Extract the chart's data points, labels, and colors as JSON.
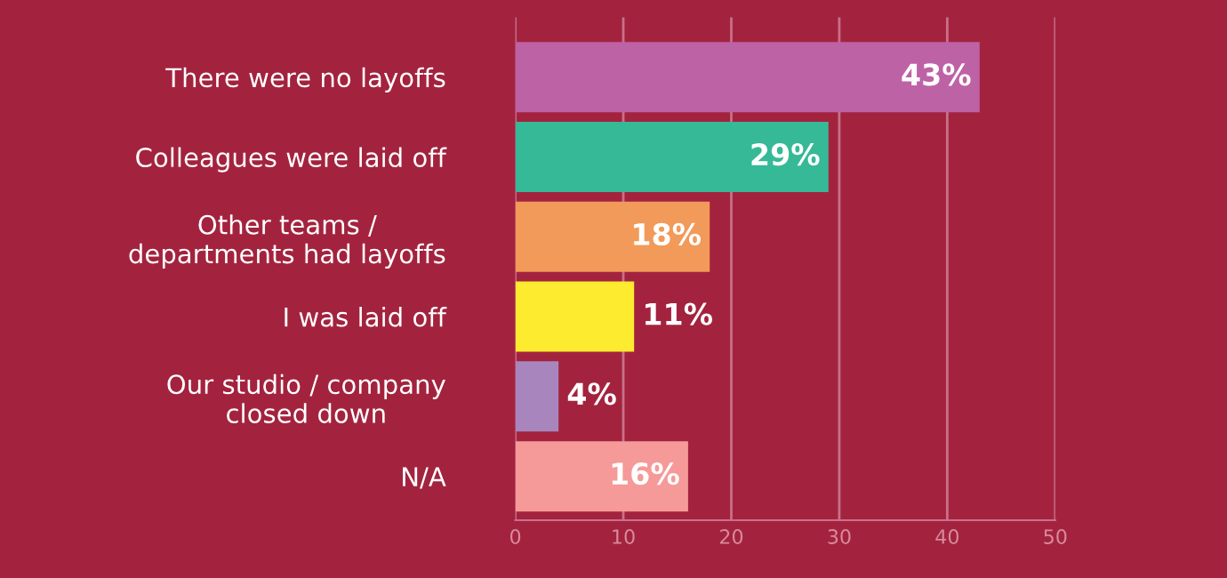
{
  "chart_data": {
    "type": "bar",
    "orientation": "horizontal",
    "categories": [
      "There were no layoffs",
      "Colleagues were laid off",
      "Other teams /\ndepartments had layoffs",
      "I was laid off",
      "Our studio / company\nclosed down",
      "N/A"
    ],
    "values": [
      43,
      29,
      18,
      11,
      4,
      16
    ],
    "colors": [
      "#be62a6",
      "#36b996",
      "#f29a59",
      "#fdeb2f",
      "#a886bd",
      "#f59a98"
    ],
    "value_labels": [
      "43%",
      "29%",
      "18%",
      "11%",
      "4%",
      "16%"
    ],
    "xlim": [
      0,
      50
    ],
    "xticks": [
      0,
      10,
      20,
      30,
      40,
      50
    ],
    "grid": "x"
  }
}
